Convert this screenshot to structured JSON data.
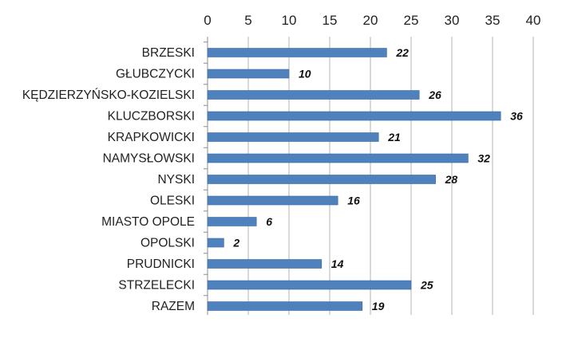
{
  "chart_data": {
    "type": "bar",
    "orientation": "horizontal",
    "categories": [
      "BRZESKI",
      "GŁUBCZYCKI",
      "KĘDZIERZYŃSKO-KOZIELSKI",
      "KLUCZBORSKI",
      "KRAPKOWICKI",
      "NAMYSŁOWSKI",
      "NYSKI",
      "OLESKI",
      "MIASTO OPOLE",
      "OPOLSKI",
      "PRUDNICKI",
      "STRZELECKI",
      "RAZEM"
    ],
    "values": [
      22,
      10,
      26,
      36,
      21,
      32,
      28,
      16,
      6,
      2,
      14,
      25,
      19
    ],
    "data_labels": [
      "22",
      "10",
      "26",
      "36",
      "21",
      "32",
      "28",
      "16",
      "6",
      "2",
      "14",
      "25",
      "19"
    ],
    "xlim": [
      0,
      40
    ],
    "x_ticks": [
      "0",
      "5",
      "10",
      "15",
      "20",
      "25",
      "30",
      "35",
      "40"
    ],
    "x_axis_position": "top",
    "grid": "vertical",
    "legend": "none",
    "colors": {
      "bar": "#4f81bd",
      "bar_edge": "#3a6aa3",
      "grid": "#b3b3b3",
      "axis": "#8c8c8c"
    }
  }
}
